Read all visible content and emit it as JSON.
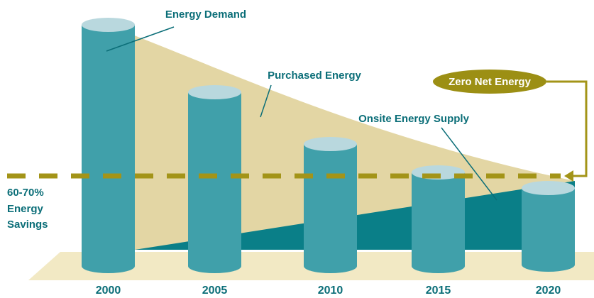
{
  "title_labels": {
    "energy_demand": "Energy Demand",
    "purchased_energy": "Purchased Energy",
    "onsite_energy_supply": "Onsite Energy Supply",
    "zero_net_energy": "Zero Net Energy"
  },
  "savings": [
    "60-70%",
    "Energy",
    "Savings"
  ],
  "years": [
    "2000",
    "2005",
    "2010",
    "2015",
    "2020"
  ]
}
